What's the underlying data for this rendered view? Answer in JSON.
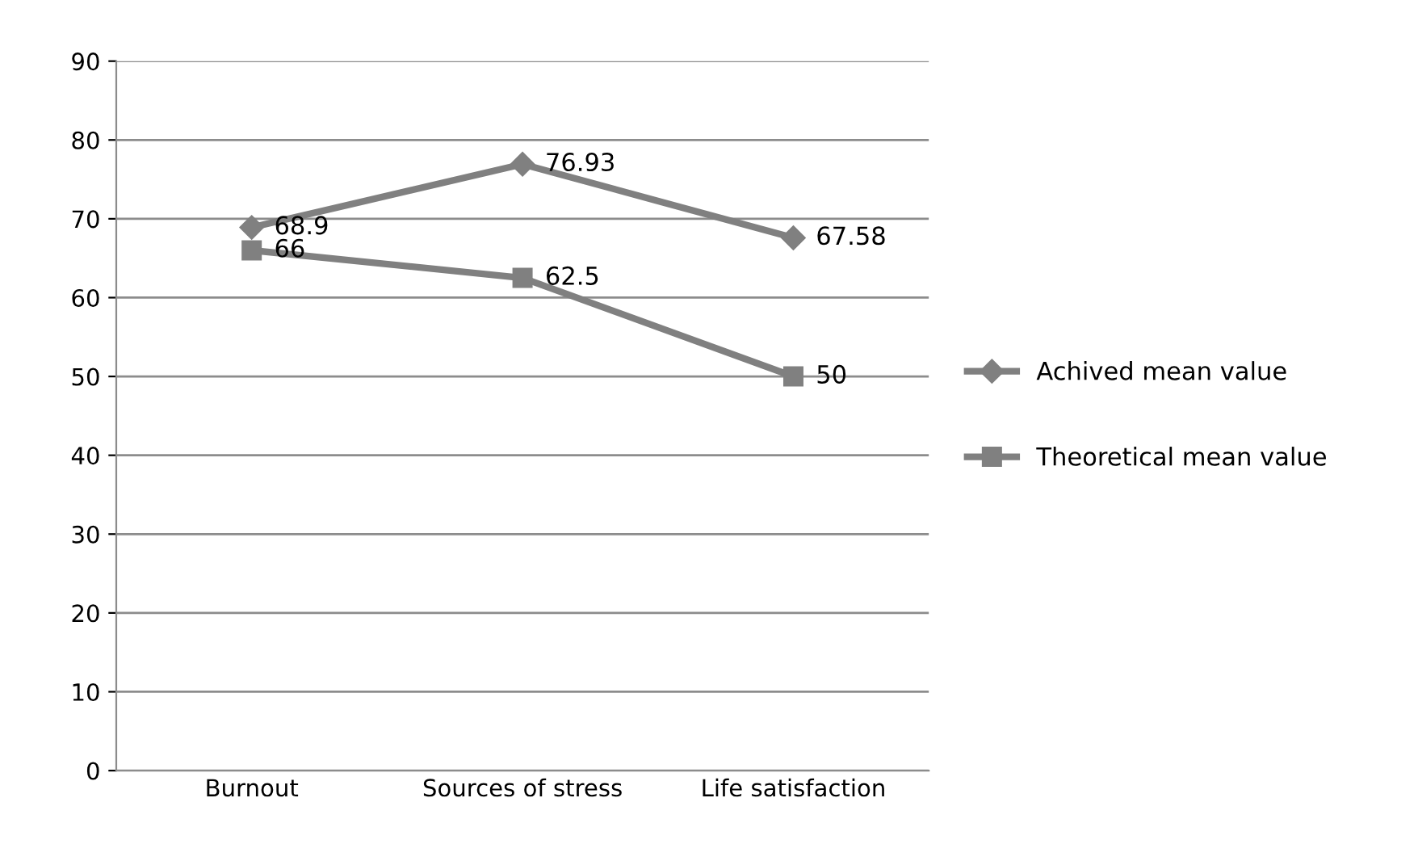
{
  "chart_data": {
    "type": "line",
    "categories": [
      "Burnout",
      "Sources of stress",
      "Life satisfaction"
    ],
    "series": [
      {
        "name": "Achived mean value",
        "color": "#808080",
        "marker": "diamond",
        "values": [
          68.9,
          76.93,
          67.58
        ]
      },
      {
        "name": "Theoretical mean value",
        "color": "#808080",
        "marker": "square",
        "values": [
          66,
          62.5,
          50
        ]
      }
    ],
    "ylim": [
      0,
      90
    ],
    "yticks": [
      0,
      10,
      20,
      30,
      40,
      50,
      60,
      70,
      80,
      90
    ],
    "grid": "y",
    "legend": "right",
    "data_labels": true
  }
}
